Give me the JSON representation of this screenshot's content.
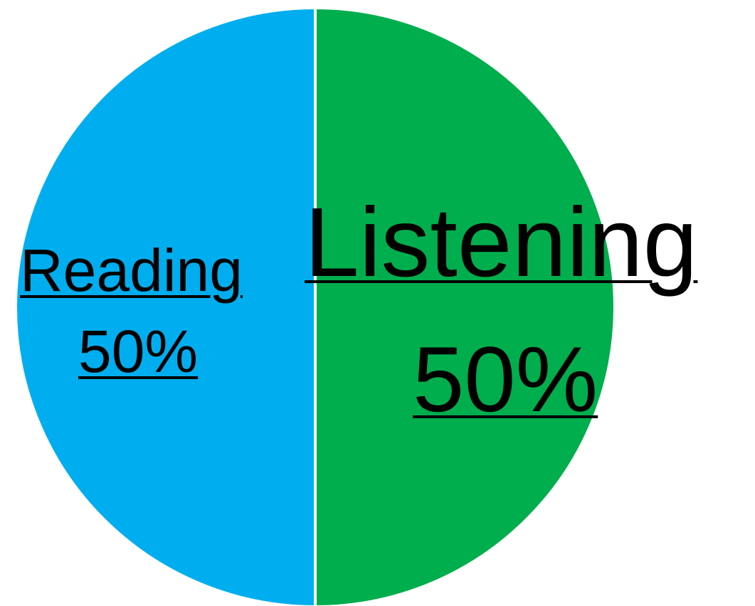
{
  "chart_data": {
    "type": "pie",
    "title": "",
    "slices": [
      {
        "label": "Reading",
        "value": 50,
        "display": "50%",
        "color": "#00AEEF"
      },
      {
        "label": "Listening",
        "value": 50,
        "display": "50%",
        "color": "#00AE4D"
      }
    ],
    "legend": "none",
    "start_angle_deg": 0,
    "direction": "counterclockwise"
  }
}
